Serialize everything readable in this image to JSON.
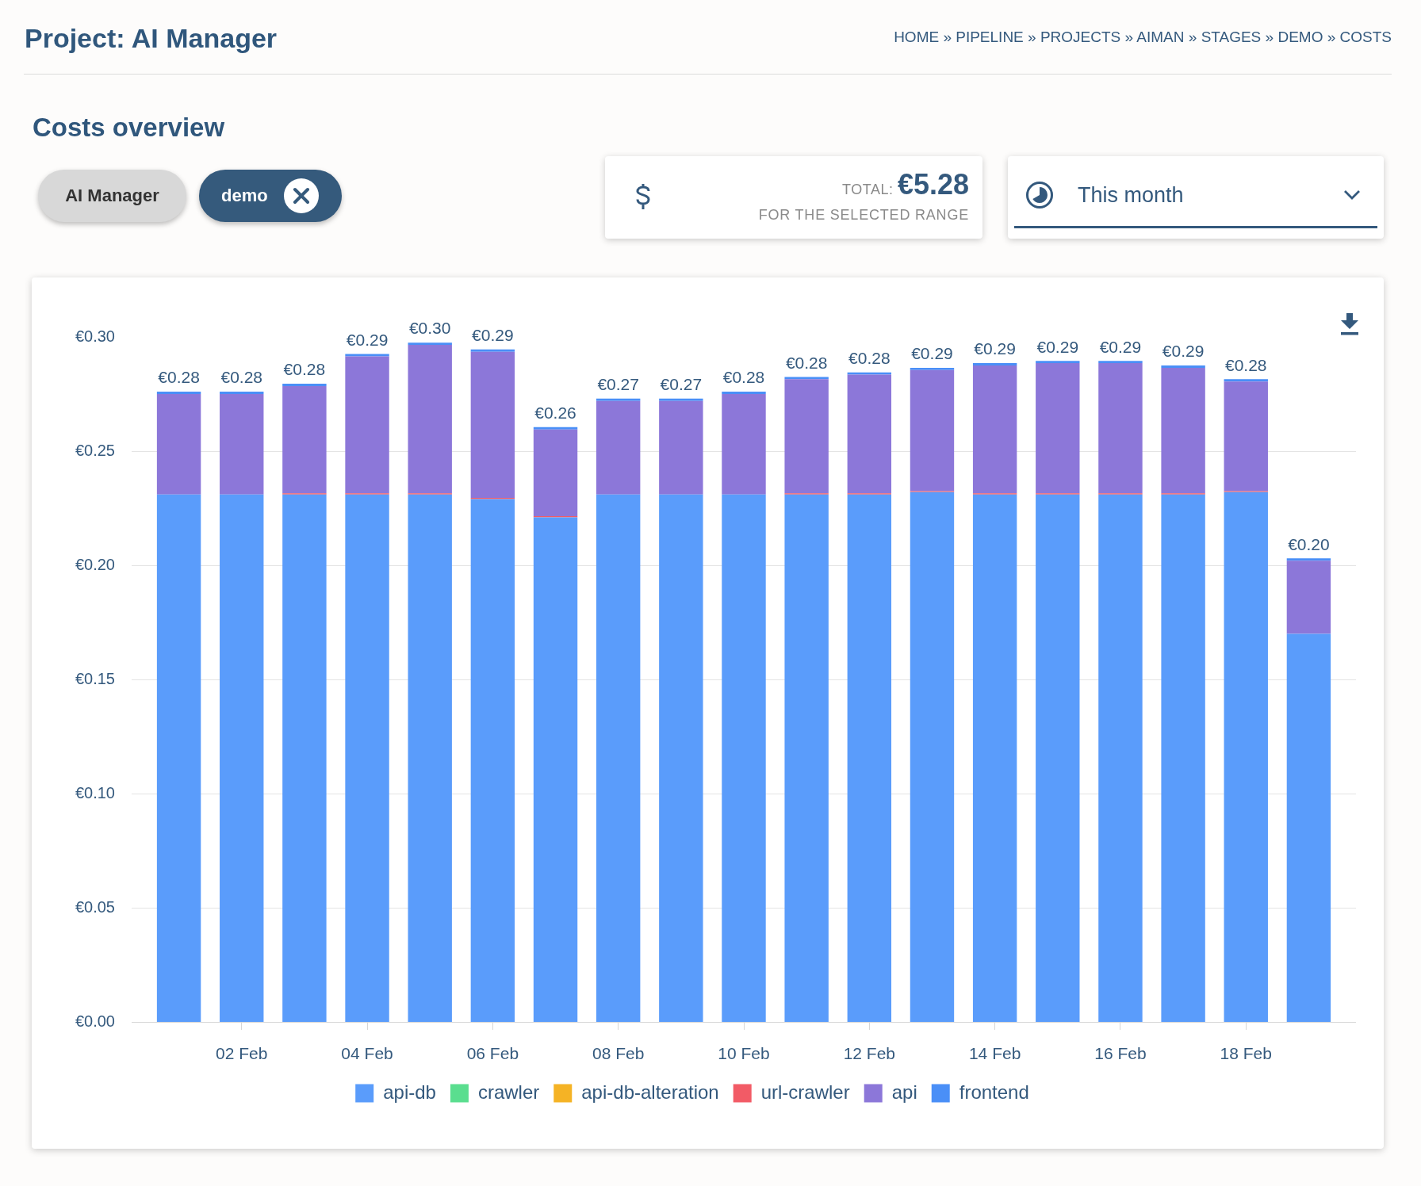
{
  "chart_data": {
    "type": "bar",
    "title": "Project: AI Manager",
    "subtitle": "Costs overview",
    "annotations": [
      "HOME » PIPELINE » PROJECTS » AIMAN » STAGES » DEMO » COSTS",
      "AI Manager",
      "demo",
      "TOTAL:",
      "€5.28",
      "FOR THE SELECTED RANGE",
      "This month"
    ],
    "categories": [
      null,
      "02 Feb",
      null,
      "04 Feb",
      null,
      "06 Feb",
      null,
      "08 Feb",
      null,
      "10 Feb",
      null,
      "12 Feb",
      null,
      "14 Feb",
      null,
      "16 Feb",
      null,
      "18 Feb",
      null
    ],
    "series": [
      {
        "name": "api-db",
        "color": "#5a9cfb",
        "values": [
          0.231,
          0.231,
          0.231,
          0.231,
          0.231,
          0.229,
          0.221,
          0.231,
          0.231,
          0.231,
          0.231,
          0.231,
          0.232,
          0.231,
          0.231,
          0.231,
          0.231,
          0.232,
          0.17
        ]
      },
      {
        "name": "crawler",
        "color": "#5ade8f",
        "values": [
          0,
          0,
          0,
          0,
          0,
          0,
          0,
          0,
          0,
          0,
          0,
          0,
          0,
          0,
          0,
          0,
          0,
          0,
          0
        ]
      },
      {
        "name": "api-db-alteration",
        "color": "#f5b325",
        "values": [
          0,
          0,
          0,
          0,
          0,
          0,
          0,
          0,
          0,
          0,
          0,
          0,
          0,
          0,
          0,
          0,
          0,
          0,
          0
        ]
      },
      {
        "name": "url-crawler",
        "color": "#f25b66",
        "values": [
          0,
          0,
          0.0005,
          0.0005,
          0.0005,
          0.0005,
          0.0005,
          0,
          0,
          0,
          0.0005,
          0.0005,
          0.0005,
          0.0005,
          0.0005,
          0.0005,
          0.0005,
          0.0005,
          0
        ]
      },
      {
        "name": "api",
        "color": "#8c77d9",
        "values": [
          0.044,
          0.044,
          0.047,
          0.06,
          0.065,
          0.064,
          0.038,
          0.041,
          0.041,
          0.044,
          0.05,
          0.052,
          0.053,
          0.056,
          0.057,
          0.057,
          0.055,
          0.048,
          0.032
        ]
      },
      {
        "name": "frontend",
        "color": "#4a8ff7",
        "values": [
          0.001,
          0.001,
          0.001,
          0.001,
          0.001,
          0.001,
          0.001,
          0.001,
          0.001,
          0.001,
          0.001,
          0.001,
          0.001,
          0.001,
          0.001,
          0.001,
          0.001,
          0.001,
          0.001
        ]
      }
    ],
    "stacked": true,
    "totals": [
      "€0.28",
      "€0.28",
      "€0.28",
      "€0.29",
      "€0.30",
      "€0.29",
      "€0.26",
      "€0.27",
      "€0.27",
      "€0.28",
      "€0.28",
      "€0.28",
      "€0.29",
      "€0.29",
      "€0.29",
      "€0.29",
      "€0.29",
      "€0.28",
      "€0.20"
    ],
    "ylim": [
      0,
      0.3
    ],
    "yticks": [
      {
        "value": 0,
        "label": "€0.00"
      },
      {
        "value": 0.05,
        "label": "€0.05"
      },
      {
        "value": 0.1,
        "label": "€0.10"
      },
      {
        "value": 0.15,
        "label": "€0.15"
      },
      {
        "value": 0.2,
        "label": "€0.20"
      },
      {
        "value": 0.25,
        "label": "€0.25"
      },
      {
        "value": 0.3,
        "label": "€0.30"
      }
    ],
    "grid": "y",
    "legend": "bottom"
  }
}
